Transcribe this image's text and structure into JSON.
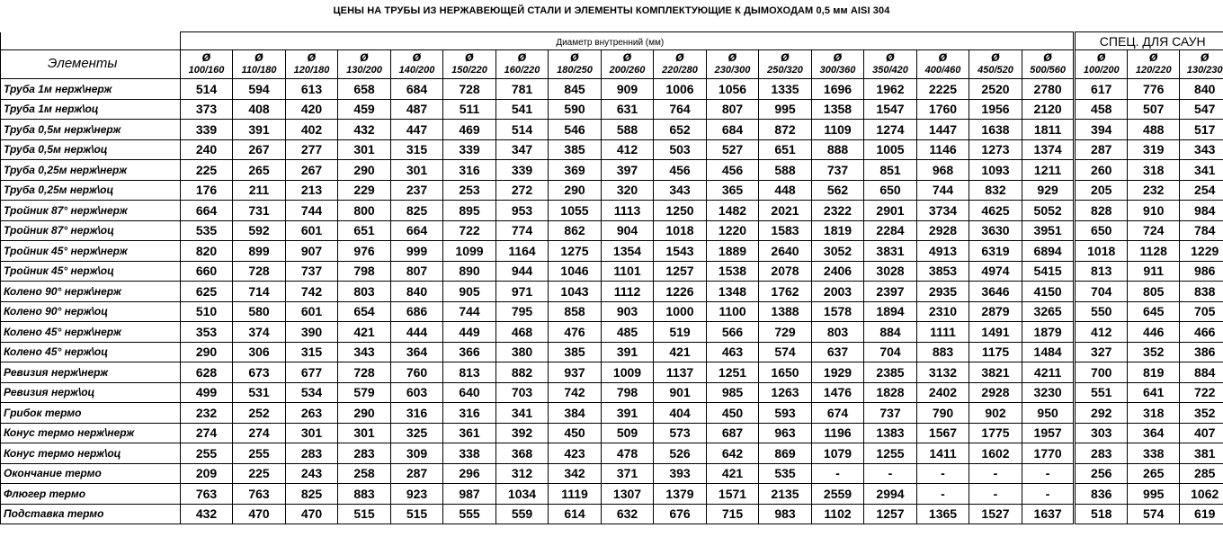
{
  "title": "ЦЕНЫ НА ТРУБЫ ИЗ НЕРЖАВЕЮЩЕЙ СТАЛИ И ЭЛЕМЕНТЫ КОМПЛЕКТУЮЩИЕ К ДЫМОХОДАМ  0,5 мм AISI 304",
  "diameter_label": "Диаметр внутренний (мм)",
  "sauna_label": "СПЕЦ. ДЛЯ САУН",
  "elements_header": "Элементы",
  "diameter_symbol": "ø",
  "columns": [
    "100/160",
    "110/180",
    "120/180",
    "130/200",
    "140/200",
    "150/220",
    "160/220",
    "180/250",
    "200/260",
    "220/280",
    "230/300",
    "250/320",
    "300/360",
    "350/420",
    "400/460",
    "450/520",
    "500/560"
  ],
  "sauna_columns": [
    "100/200",
    "120/220",
    "130/230"
  ],
  "rows": [
    {
      "name": "Труба 1м нерж\\нерж",
      "values": [
        "514",
        "594",
        "613",
        "658",
        "684",
        "728",
        "781",
        "845",
        "909",
        "1006",
        "1056",
        "1335",
        "1696",
        "1962",
        "2225",
        "2520",
        "2780"
      ],
      "sauna": [
        "617",
        "776",
        "840"
      ]
    },
    {
      "name": "Труба 1м нерж\\оц",
      "values": [
        "373",
        "408",
        "420",
        "459",
        "487",
        "511",
        "541",
        "590",
        "631",
        "764",
        "807",
        "995",
        "1358",
        "1547",
        "1760",
        "1956",
        "2120"
      ],
      "sauna": [
        "458",
        "507",
        "547"
      ]
    },
    {
      "name": "Труба 0,5м нерж\\нерж",
      "values": [
        "339",
        "391",
        "402",
        "432",
        "447",
        "469",
        "514",
        "546",
        "588",
        "652",
        "684",
        "872",
        "1109",
        "1274",
        "1447",
        "1638",
        "1811"
      ],
      "sauna": [
        "394",
        "488",
        "517"
      ]
    },
    {
      "name": "Труба 0,5м нерж\\оц",
      "values": [
        "240",
        "267",
        "277",
        "301",
        "315",
        "339",
        "347",
        "385",
        "412",
        "503",
        "527",
        "651",
        "888",
        "1005",
        "1146",
        "1273",
        "1374"
      ],
      "sauna": [
        "287",
        "319",
        "343"
      ]
    },
    {
      "name": "Труба 0,25м нерж\\нерж",
      "values": [
        "225",
        "265",
        "267",
        "290",
        "301",
        "316",
        "339",
        "369",
        "397",
        "456",
        "456",
        "588",
        "737",
        "851",
        "968",
        "1093",
        "1211"
      ],
      "sauna": [
        "260",
        "318",
        "341"
      ]
    },
    {
      "name": "Труба 0,25м нерж\\оц",
      "values": [
        "176",
        "211",
        "213",
        "229",
        "237",
        "253",
        "272",
        "290",
        "320",
        "343",
        "365",
        "448",
        "562",
        "650",
        "744",
        "832",
        "929"
      ],
      "sauna": [
        "205",
        "232",
        "254"
      ]
    },
    {
      "name": "Тройник 87° нерж\\нерж",
      "values": [
        "664",
        "731",
        "744",
        "800",
        "825",
        "895",
        "953",
        "1055",
        "1113",
        "1250",
        "1482",
        "2021",
        "2322",
        "2901",
        "3734",
        "4625",
        "5052"
      ],
      "sauna": [
        "828",
        "910",
        "984"
      ]
    },
    {
      "name": "Тройник 87° нерж\\оц",
      "values": [
        "535",
        "592",
        "601",
        "651",
        "664",
        "722",
        "774",
        "862",
        "904",
        "1018",
        "1220",
        "1583",
        "1819",
        "2284",
        "2928",
        "3630",
        "3951"
      ],
      "sauna": [
        "650",
        "724",
        "784"
      ]
    },
    {
      "name": "Тройник 45° нерж\\нерж",
      "values": [
        "820",
        "899",
        "907",
        "976",
        "999",
        "1099",
        "1164",
        "1275",
        "1354",
        "1543",
        "1889",
        "2640",
        "3052",
        "3831",
        "4913",
        "6319",
        "6894"
      ],
      "sauna": [
        "1018",
        "1128",
        "1229"
      ]
    },
    {
      "name": "Тройник 45° нерж\\оц",
      "values": [
        "660",
        "728",
        "737",
        "798",
        "807",
        "890",
        "944",
        "1046",
        "1101",
        "1257",
        "1538",
        "2078",
        "2406",
        "3028",
        "3853",
        "4974",
        "5415"
      ],
      "sauna": [
        "813",
        "911",
        "986"
      ]
    },
    {
      "name": "Колено 90° нерж\\нерж",
      "values": [
        "625",
        "714",
        "742",
        "803",
        "840",
        "905",
        "971",
        "1043",
        "1112",
        "1226",
        "1348",
        "1762",
        "2003",
        "2397",
        "2935",
        "3646",
        "4150"
      ],
      "sauna": [
        "704",
        "805",
        "838"
      ]
    },
    {
      "name": "Колено 90° нерж\\оц",
      "values": [
        "510",
        "580",
        "601",
        "654",
        "686",
        "744",
        "795",
        "858",
        "903",
        "1000",
        "1100",
        "1388",
        "1578",
        "1894",
        "2310",
        "2879",
        "3265"
      ],
      "sauna": [
        "550",
        "645",
        "705"
      ]
    },
    {
      "name": "Колено 45° нерж\\нерж",
      "values": [
        "353",
        "374",
        "390",
        "421",
        "444",
        "449",
        "468",
        "476",
        "485",
        "519",
        "566",
        "729",
        "803",
        "884",
        "1111",
        "1491",
        "1879"
      ],
      "sauna": [
        "412",
        "446",
        "466"
      ]
    },
    {
      "name": "Колено 45° нерж\\оц",
      "values": [
        "290",
        "306",
        "315",
        "343",
        "364",
        "366",
        "380",
        "385",
        "391",
        "421",
        "463",
        "574",
        "637",
        "704",
        "883",
        "1175",
        "1484"
      ],
      "sauna": [
        "327",
        "352",
        "386"
      ]
    },
    {
      "name": "Ревизия нерж\\нерж",
      "values": [
        "628",
        "673",
        "677",
        "728",
        "760",
        "813",
        "882",
        "937",
        "1009",
        "1137",
        "1251",
        "1650",
        "1929",
        "2385",
        "3132",
        "3821",
        "4211"
      ],
      "sauna": [
        "700",
        "819",
        "884"
      ]
    },
    {
      "name": "Ревизия нерж\\оц",
      "values": [
        "499",
        "531",
        "534",
        "579",
        "603",
        "640",
        "703",
        "742",
        "798",
        "901",
        "985",
        "1263",
        "1476",
        "1828",
        "2402",
        "2928",
        "3230"
      ],
      "sauna": [
        "551",
        "641",
        "722"
      ]
    },
    {
      "name": "Грибок термо",
      "values": [
        "232",
        "252",
        "263",
        "290",
        "316",
        "316",
        "341",
        "384",
        "391",
        "404",
        "450",
        "593",
        "674",
        "737",
        "790",
        "902",
        "950"
      ],
      "sauna": [
        "292",
        "318",
        "352"
      ]
    },
    {
      "name": "Конус термо нерж\\нерж",
      "values": [
        "274",
        "274",
        "301",
        "301",
        "325",
        "361",
        "392",
        "450",
        "509",
        "573",
        "687",
        "963",
        "1196",
        "1383",
        "1567",
        "1775",
        "1957"
      ],
      "sauna": [
        "303",
        "364",
        "407"
      ]
    },
    {
      "name": "Конус термо нерж\\оц",
      "values": [
        "255",
        "255",
        "283",
        "283",
        "309",
        "338",
        "368",
        "423",
        "478",
        "526",
        "642",
        "869",
        "1079",
        "1255",
        "1411",
        "1602",
        "1770"
      ],
      "sauna": [
        "283",
        "338",
        "381"
      ]
    },
    {
      "name": "Окончание термо",
      "values": [
        "209",
        "225",
        "243",
        "258",
        "287",
        "296",
        "312",
        "342",
        "371",
        "393",
        "421",
        "535",
        "-",
        "-",
        "-",
        "-",
        "-"
      ],
      "sauna": [
        "256",
        "265",
        "285"
      ]
    },
    {
      "name": "Флюгер термо",
      "values": [
        "763",
        "763",
        "825",
        "883",
        "923",
        "987",
        "1034",
        "1119",
        "1307",
        "1379",
        "1571",
        "2135",
        "2559",
        "2994",
        "-",
        "-",
        "-"
      ],
      "sauna": [
        "836",
        "995",
        "1062"
      ]
    },
    {
      "name": "Подставка термо",
      "values": [
        "432",
        "470",
        "470",
        "515",
        "515",
        "555",
        "559",
        "614",
        "632",
        "676",
        "715",
        "983",
        "1102",
        "1257",
        "1365",
        "1527",
        "1637"
      ],
      "sauna": [
        "518",
        "574",
        "619"
      ]
    }
  ]
}
